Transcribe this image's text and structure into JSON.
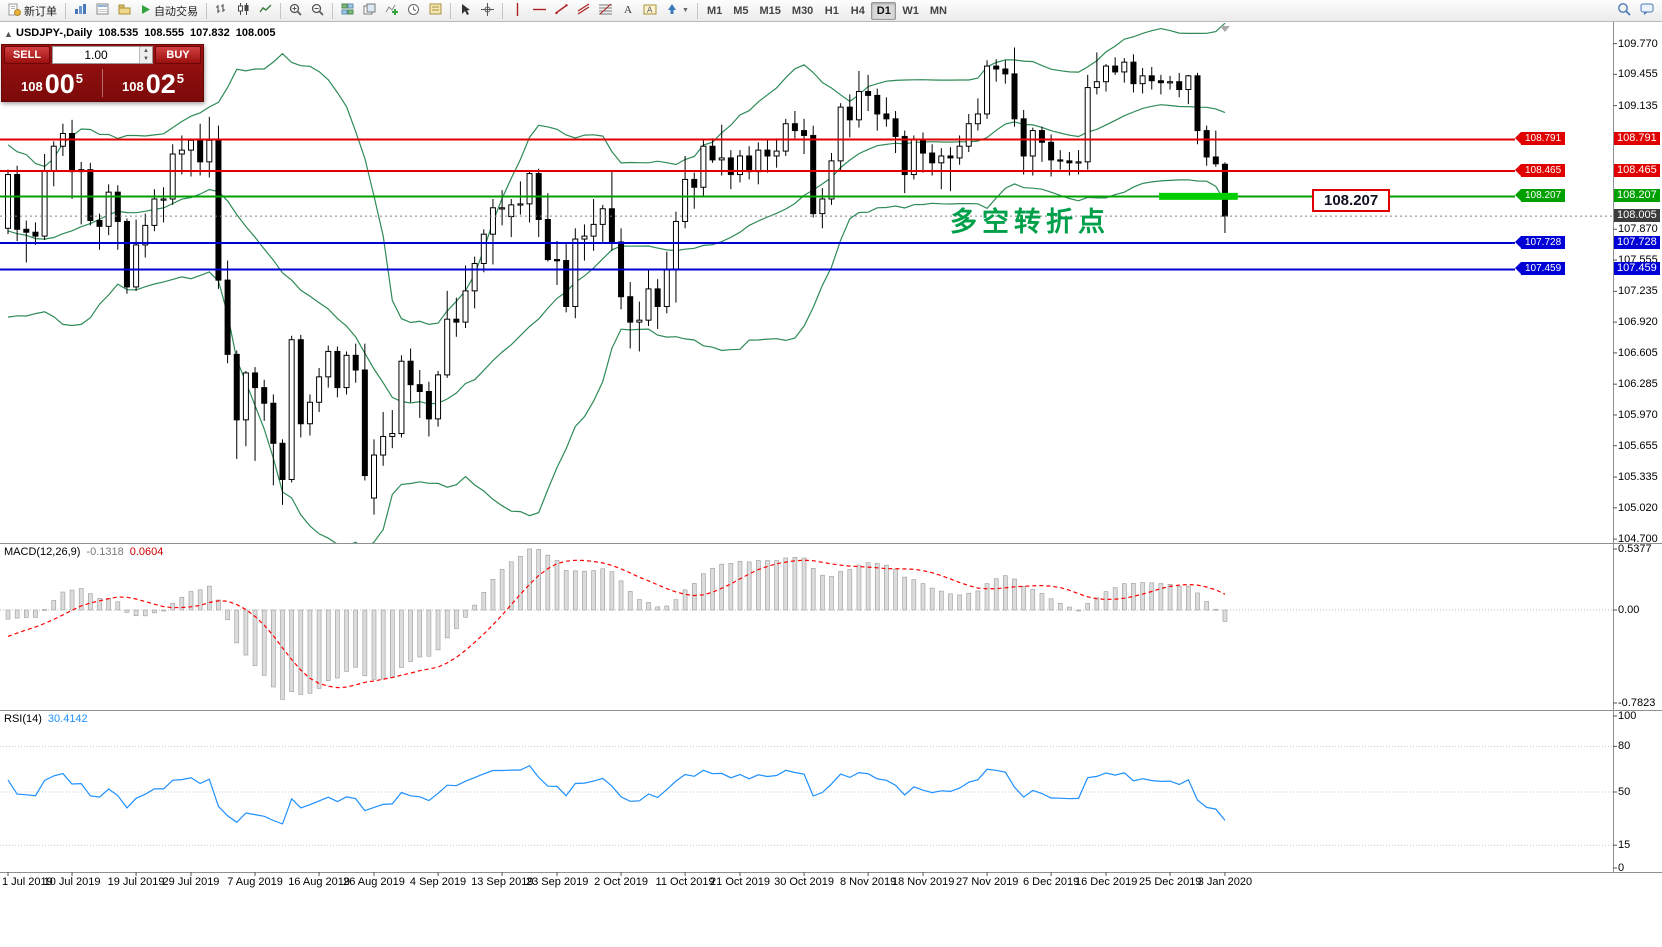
{
  "toolbar": {
    "new_order_label": "新订单",
    "autotrading_label": "自动交易",
    "timeframes": [
      "M1",
      "M5",
      "M15",
      "M30",
      "H1",
      "H4",
      "D1",
      "W1",
      "MN"
    ],
    "active_timeframe": "D1",
    "icon_names": [
      "new-order",
      "market-watch",
      "data-window",
      "navigator",
      "autotrading",
      "bar-chart",
      "candlestick",
      "line-chart",
      "zoom-in",
      "zoom-out",
      "tile-windows",
      "arrange-windows",
      "indicators",
      "periods",
      "templates",
      "cursor",
      "crosshair",
      "vertical-line",
      "horizontal-line",
      "trendline",
      "equidistant-channel",
      "fibonacci",
      "text",
      "text-label",
      "arrow-shapes",
      "search",
      "chat"
    ]
  },
  "chart_header": {
    "collapse_icon": "▲",
    "symbol": "USDJPY-,Daily",
    "open": "108.535",
    "high": "108.555",
    "low": "107.832",
    "close": "108.005"
  },
  "trade_panel": {
    "sell_label": "SELL",
    "buy_label": "BUY",
    "volume": "1.00",
    "sell_price": {
      "base": "108",
      "pips": "00",
      "point": "5"
    },
    "buy_price": {
      "base": "108",
      "pips": "02",
      "point": "5"
    }
  },
  "annotation": {
    "text": "多空转折点",
    "color": "#00A04A"
  },
  "price_label_box": {
    "text": "108.207"
  },
  "price_axis": {
    "plain_labels": [
      "109.770",
      "109.455",
      "109.135",
      "107.870",
      "107.555",
      "107.235",
      "106.920",
      "106.605",
      "106.285",
      "105.970",
      "105.655",
      "105.335",
      "105.020",
      "104.700"
    ],
    "tags": [
      {
        "text": "108.791",
        "price": 108.791,
        "bg": "#E00000"
      },
      {
        "text": "108.465",
        "price": 108.465,
        "bg": "#E00000"
      },
      {
        "text": "108.207",
        "price": 108.207,
        "bg": "#00A000"
      },
      {
        "text": "108.005",
        "price": 108.005,
        "bg": "#3C3C3C"
      },
      {
        "text": "107.728",
        "price": 107.728,
        "bg": "#0000D6"
      },
      {
        "text": "107.459",
        "price": 107.459,
        "bg": "#0000D6"
      }
    ]
  },
  "macd_panel": {
    "title": "MACD(12,26,9)",
    "value_main": "-0.1318",
    "value_signal": "0.0604",
    "axis_labels": [
      "0.5377",
      "0.00",
      "-0.7823"
    ]
  },
  "rsi_panel": {
    "title": "RSI(14)",
    "value": "30.4142",
    "axis_labels": [
      "100",
      "80",
      "50",
      "15",
      "0"
    ],
    "level_lines": [
      80,
      50,
      15
    ]
  },
  "date_axis": {
    "ticks": [
      {
        "label": "1 Jul 2019",
        "index": 0
      },
      {
        "label": "10 Jul 2019",
        "index": 7
      },
      {
        "label": "19 Jul 2019",
        "index": 14
      },
      {
        "label": "29 Jul 2019",
        "index": 20
      },
      {
        "label": "7 Aug 2019",
        "index": 27
      },
      {
        "label": "16 Aug 2019",
        "index": 34
      },
      {
        "label": "26 Aug 2019",
        "index": 40
      },
      {
        "label": "4 Sep 2019",
        "index": 47
      },
      {
        "label": "13 Sep 2019",
        "index": 54
      },
      {
        "label": "23 Sep 2019",
        "index": 60
      },
      {
        "label": "2 Oct 2019",
        "index": 67
      },
      {
        "label": "11 Oct 2019",
        "index": 74
      },
      {
        "label": "21 Oct 2019",
        "index": 80
      },
      {
        "label": "30 Oct 2019",
        "index": 87
      },
      {
        "label": "8 Nov 2019",
        "index": 94
      },
      {
        "label": "18 Nov 2019",
        "index": 100
      },
      {
        "label": "27 Nov 2019",
        "index": 107
      },
      {
        "label": "6 Dec 2019",
        "index": 114
      },
      {
        "label": "16 Dec 2019",
        "index": 120
      },
      {
        "label": "25 Dec 2019",
        "index": 127
      },
      {
        "label": "3 Jan 2020",
        "index": 133
      }
    ]
  },
  "chart_data": {
    "type": "candlestick",
    "symbol": "USDJPY-",
    "period": "Daily",
    "y_axis": {
      "min": 104.66,
      "max": 109.95
    },
    "bollinger": {
      "period": 20,
      "deviation": 2,
      "color": "#2E8B57"
    },
    "colors": {
      "bull": "#FFFFFF",
      "bear": "#000000",
      "wick": "#000000",
      "rsi_line": "#1E90FF",
      "macd_signal": "#FF0000",
      "macd_hist_fill": "#DCDCDC",
      "macd_hist_stroke": "#9A9A9A",
      "highlight_green": "#00CE00",
      "current_price_line": "#808080"
    },
    "levels": [
      {
        "price": 108.791,
        "color": "#E00000",
        "label": "108.791"
      },
      {
        "price": 108.465,
        "color": "#E00000",
        "label": "108.465"
      },
      {
        "price": 108.207,
        "color": "#00A000",
        "label": "108.207"
      },
      {
        "price": 107.728,
        "color": "#0000D6",
        "label": "107.728"
      },
      {
        "price": 107.459,
        "color": "#0000D6",
        "label": "107.459"
      }
    ],
    "current_price": 108.005,
    "highlight_segment": {
      "price": 108.207,
      "from_index": 125.8,
      "to_index": 134.4,
      "thickness": 7,
      "color": "#00CE00"
    },
    "pre_closes": [
      108.4,
      108.29,
      108.07,
      107.83,
      107.56,
      107.84,
      108.11,
      108.44,
      108.16,
      108.47,
      108.59,
      108.39,
      108.07,
      107.87,
      107.64,
      107.31,
      107.02,
      107.31,
      107.26,
      107.55,
      107.72,
      107.64,
      107.79,
      107.86,
      107.74,
      107.8
    ],
    "candles": [
      [
        107.88,
        108.48,
        107.82,
        108.43
      ],
      [
        108.43,
        108.52,
        107.75,
        107.87
      ],
      [
        107.87,
        107.96,
        107.53,
        107.84
      ],
      [
        107.84,
        107.94,
        107.71,
        107.8
      ],
      [
        107.8,
        108.64,
        107.76,
        108.47
      ],
      [
        108.47,
        108.77,
        108.31,
        108.72
      ],
      [
        108.72,
        108.95,
        108.62,
        108.85
      ],
      [
        108.85,
        108.99,
        108.18,
        108.46
      ],
      [
        108.46,
        108.56,
        107.92,
        108.48
      ],
      [
        108.48,
        108.55,
        107.91,
        107.96
      ],
      [
        107.96,
        108.03,
        107.66,
        107.9
      ],
      [
        107.9,
        108.33,
        107.81,
        108.25
      ],
      [
        108.25,
        108.32,
        107.66,
        107.95
      ],
      [
        107.95,
        107.98,
        107.21,
        107.28
      ],
      [
        107.28,
        107.97,
        107.24,
        107.71
      ],
      [
        107.71,
        108.03,
        107.58,
        107.91
      ],
      [
        107.91,
        108.28,
        107.85,
        108.18
      ],
      [
        108.18,
        108.3,
        107.94,
        108.18
      ],
      [
        108.18,
        108.74,
        108.12,
        108.64
      ],
      [
        108.64,
        108.83,
        108.43,
        108.68
      ],
      [
        108.68,
        108.79,
        108.41,
        108.78
      ],
      [
        108.78,
        108.95,
        108.42,
        108.56
      ],
      [
        108.56,
        109.02,
        108.4,
        108.78
      ],
      [
        108.78,
        108.93,
        107.26,
        107.35
      ],
      [
        107.35,
        107.55,
        106.5,
        106.59
      ],
      [
        106.59,
        106.63,
        105.52,
        105.92
      ],
      [
        105.92,
        106.42,
        105.65,
        106.4
      ],
      [
        106.4,
        106.46,
        105.5,
        106.25
      ],
      [
        106.25,
        106.33,
        105.91,
        106.09
      ],
      [
        106.09,
        106.18,
        105.25,
        105.68
      ],
      [
        105.68,
        105.72,
        105.05,
        105.31
      ],
      [
        105.31,
        106.78,
        105.28,
        106.74
      ],
      [
        106.74,
        106.79,
        105.74,
        105.88
      ],
      [
        105.88,
        106.18,
        105.76,
        106.1
      ],
      [
        106.1,
        106.45,
        106.0,
        106.36
      ],
      [
        106.36,
        106.68,
        106.25,
        106.62
      ],
      [
        106.62,
        106.67,
        106.15,
        106.25
      ],
      [
        106.25,
        106.62,
        106.18,
        106.58
      ],
      [
        106.58,
        106.7,
        106.3,
        106.43
      ],
      [
        106.43,
        106.7,
        105.3,
        105.35
      ],
      [
        105.12,
        105.72,
        104.95,
        105.56
      ],
      [
        105.56,
        106.0,
        105.45,
        105.75
      ],
      [
        105.75,
        106.02,
        105.63,
        105.78
      ],
      [
        105.78,
        106.58,
        105.74,
        106.52
      ],
      [
        106.52,
        106.65,
        106.1,
        106.28
      ],
      [
        106.28,
        106.43,
        105.94,
        106.21
      ],
      [
        106.21,
        106.31,
        105.75,
        105.93
      ],
      [
        105.93,
        106.42,
        105.85,
        106.38
      ],
      [
        106.38,
        107.24,
        106.35,
        106.95
      ],
      [
        106.95,
        107.17,
        106.77,
        106.92
      ],
      [
        106.92,
        107.5,
        106.86,
        107.24
      ],
      [
        107.24,
        107.59,
        107.06,
        107.52
      ],
      [
        107.52,
        107.87,
        107.43,
        107.82
      ],
      [
        107.82,
        108.18,
        107.51,
        108.09
      ],
      [
        108.09,
        108.27,
        107.91,
        108.09
      ],
      [
        108.0,
        108.18,
        107.79,
        108.12
      ],
      [
        108.12,
        108.36,
        108.02,
        108.13
      ],
      [
        108.13,
        108.47,
        107.94,
        108.44
      ],
      [
        108.44,
        108.49,
        107.79,
        107.97
      ],
      [
        107.97,
        108.24,
        107.54,
        107.56
      ],
      [
        107.56,
        107.75,
        107.3,
        107.55
      ],
      [
        107.55,
        107.74,
        107.02,
        107.08
      ],
      [
        107.08,
        107.88,
        106.96,
        107.77
      ],
      [
        107.77,
        107.92,
        107.55,
        107.8
      ],
      [
        107.8,
        108.18,
        107.65,
        107.92
      ],
      [
        107.92,
        108.12,
        107.74,
        108.08
      ],
      [
        108.08,
        108.47,
        107.65,
        107.74
      ],
      [
        107.74,
        107.88,
        107.05,
        107.18
      ],
      [
        107.18,
        107.33,
        106.65,
        106.92
      ],
      [
        106.92,
        107.13,
        106.62,
        106.94
      ],
      [
        106.94,
        107.46,
        106.88,
        107.26
      ],
      [
        107.26,
        107.36,
        106.85,
        107.08
      ],
      [
        107.08,
        107.64,
        107.01,
        107.46
      ],
      [
        107.46,
        108.05,
        107.12,
        107.95
      ],
      [
        107.95,
        108.62,
        107.88,
        108.38
      ],
      [
        108.38,
        108.45,
        108.08,
        108.3
      ],
      [
        108.3,
        108.78,
        108.2,
        108.72
      ],
      [
        108.72,
        108.8,
        108.55,
        108.58
      ],
      [
        108.58,
        108.94,
        108.42,
        108.6
      ],
      [
        108.6,
        108.68,
        108.28,
        108.43
      ],
      [
        108.43,
        108.68,
        108.35,
        108.62
      ],
      [
        108.62,
        108.72,
        108.38,
        108.46
      ],
      [
        108.46,
        108.76,
        108.33,
        108.68
      ],
      [
        108.68,
        108.78,
        108.45,
        108.62
      ],
      [
        108.62,
        108.8,
        108.5,
        108.67
      ],
      [
        108.67,
        109.0,
        108.62,
        108.95
      ],
      [
        108.95,
        109.08,
        108.8,
        108.88
      ],
      [
        108.88,
        109.0,
        108.64,
        108.83
      ],
      [
        108.83,
        108.93,
        107.99,
        108.03
      ],
      [
        108.03,
        108.29,
        107.88,
        108.18
      ],
      [
        108.18,
        108.65,
        108.12,
        108.57
      ],
      [
        108.57,
        109.16,
        108.47,
        109.12
      ],
      [
        109.12,
        109.25,
        108.81,
        108.99
      ],
      [
        108.99,
        109.49,
        108.91,
        109.28
      ],
      [
        109.28,
        109.45,
        109.08,
        109.24
      ],
      [
        109.24,
        109.31,
        108.88,
        109.05
      ],
      [
        109.05,
        109.22,
        108.92,
        109.0
      ],
      [
        109.0,
        109.08,
        108.65,
        108.82
      ],
      [
        108.82,
        108.88,
        108.24,
        108.43
      ],
      [
        108.43,
        108.83,
        108.38,
        108.79
      ],
      [
        108.79,
        108.86,
        108.45,
        108.65
      ],
      [
        108.65,
        108.74,
        108.42,
        108.55
      ],
      [
        108.55,
        108.7,
        108.28,
        108.62
      ],
      [
        108.62,
        108.71,
        108.26,
        108.6
      ],
      [
        108.6,
        108.83,
        108.53,
        108.72
      ],
      [
        108.72,
        109.05,
        108.66,
        108.95
      ],
      [
        108.95,
        109.21,
        108.88,
        109.05
      ],
      [
        109.05,
        109.6,
        109.0,
        109.54
      ],
      [
        109.54,
        109.61,
        109.38,
        109.51
      ],
      [
        109.51,
        109.6,
        109.36,
        109.46
      ],
      [
        109.46,
        109.73,
        108.92,
        109.0
      ],
      [
        109.0,
        109.09,
        108.43,
        108.62
      ],
      [
        108.62,
        108.91,
        108.42,
        108.88
      ],
      [
        108.88,
        108.92,
        108.56,
        108.76
      ],
      [
        108.76,
        108.84,
        108.41,
        108.58
      ],
      [
        108.58,
        108.68,
        108.48,
        108.57
      ],
      [
        108.57,
        108.66,
        108.42,
        108.55
      ],
      [
        108.55,
        108.68,
        108.43,
        108.56
      ],
      [
        108.56,
        109.45,
        108.48,
        109.32
      ],
      [
        109.32,
        109.68,
        109.25,
        109.38
      ],
      [
        109.38,
        109.56,
        109.28,
        109.54
      ],
      [
        109.54,
        109.63,
        109.45,
        109.48
      ],
      [
        109.48,
        109.62,
        109.37,
        109.58
      ],
      [
        109.58,
        109.66,
        109.27,
        109.36
      ],
      [
        109.36,
        109.52,
        109.26,
        109.44
      ],
      [
        109.44,
        109.53,
        109.3,
        109.39
      ],
      [
        109.39,
        109.45,
        109.25,
        109.37
      ],
      [
        109.37,
        109.44,
        109.3,
        109.38
      ],
      [
        109.38,
        109.47,
        109.22,
        109.3
      ],
      [
        109.3,
        109.45,
        109.15,
        109.44
      ],
      [
        109.44,
        109.47,
        108.74,
        108.88
      ],
      [
        108.88,
        108.93,
        108.52,
        108.61
      ],
      [
        108.61,
        108.88,
        108.51,
        108.54
      ],
      [
        108.535,
        108.555,
        107.832,
        108.005
      ]
    ]
  }
}
